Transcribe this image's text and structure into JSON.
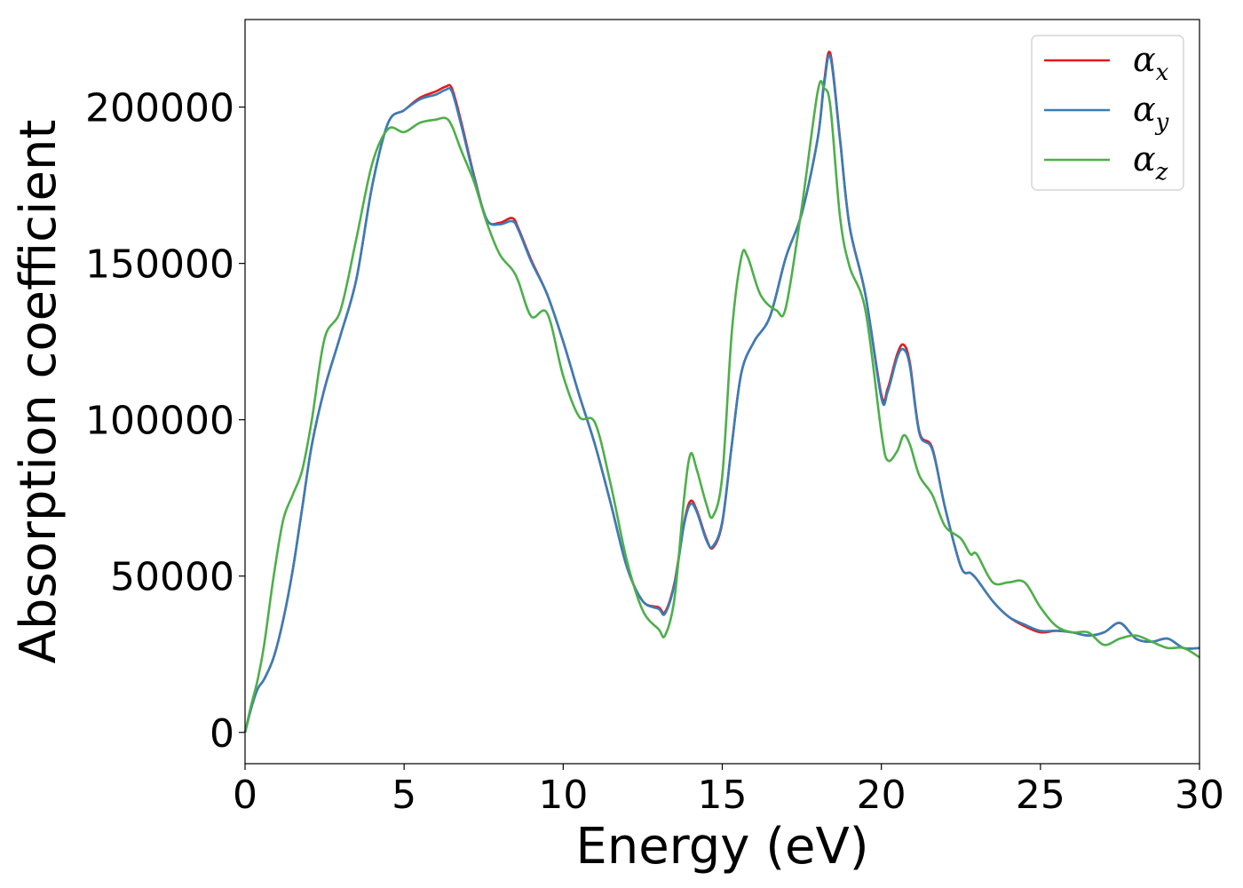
{
  "chart_data": {
    "type": "line",
    "xlabel": "Energy (eV)",
    "ylabel": "Absorption coefficient",
    "xlim": [
      0,
      30
    ],
    "ylim": [
      -10000,
      228000
    ],
    "xticks": [
      0,
      5,
      10,
      15,
      20,
      25,
      30
    ],
    "yticks": [
      0,
      50000,
      100000,
      150000,
      200000
    ],
    "grid": false,
    "legend_position": "top-right",
    "series": [
      {
        "name": "α_x",
        "legend_main": "α",
        "legend_sub": "x",
        "color": "#e41a1c",
        "x": [
          0,
          0.2,
          0.4,
          0.6,
          0.9,
          1.2,
          1.5,
          1.8,
          2.1,
          2.5,
          3.0,
          3.5,
          4.0,
          4.5,
          5.0,
          5.5,
          6.0,
          6.3,
          6.5,
          6.8,
          7.2,
          7.6,
          8.0,
          8.4,
          8.6,
          9.0,
          9.5,
          10.0,
          10.5,
          11.0,
          11.5,
          12.0,
          12.5,
          13.0,
          13.2,
          13.5,
          13.8,
          14.0,
          14.2,
          14.5,
          14.7,
          15.0,
          15.3,
          15.6,
          16.0,
          16.5,
          17.0,
          17.5,
          18.0,
          18.2,
          18.4,
          18.7,
          19.0,
          19.5,
          20.0,
          20.2,
          20.5,
          20.7,
          20.9,
          21.2,
          21.6,
          22.0,
          22.5,
          22.8,
          23.0,
          23.5,
          24.0,
          24.5,
          25.0,
          25.5,
          26.0,
          26.5,
          27.0,
          27.5,
          28.0,
          28.5,
          29.0,
          29.5,
          30.0
        ],
        "y": [
          0,
          8000,
          14000,
          17000,
          24000,
          36000,
          52000,
          72000,
          92000,
          110000,
          127000,
          145000,
          175000,
          195000,
          199000,
          203000,
          205000,
          206500,
          206000,
          195000,
          178000,
          164000,
          163000,
          164500,
          161000,
          151000,
          140000,
          125000,
          108000,
          92000,
          73000,
          53000,
          42000,
          40000,
          38500,
          48000,
          67000,
          74000,
          71000,
          62000,
          59000,
          67000,
          92000,
          115000,
          125000,
          133000,
          152000,
          166000,
          190000,
          208000,
          217000,
          190000,
          162000,
          140000,
          108000,
          110000,
          121000,
          124000,
          118000,
          96000,
          91000,
          72000,
          53000,
          51000,
          49000,
          42000,
          37000,
          34000,
          32000,
          32500,
          32000,
          31000,
          32000,
          35000,
          30000,
          29000,
          30000,
          27000,
          27000
        ]
      },
      {
        "name": "α_y",
        "legend_main": "α",
        "legend_sub": "y",
        "color": "#377eb8",
        "x": [
          0,
          0.2,
          0.4,
          0.6,
          0.9,
          1.2,
          1.5,
          1.8,
          2.1,
          2.5,
          3.0,
          3.5,
          4.0,
          4.5,
          5.0,
          5.5,
          6.0,
          6.3,
          6.5,
          6.8,
          7.2,
          7.6,
          8.0,
          8.4,
          8.6,
          9.0,
          9.5,
          10.0,
          10.5,
          11.0,
          11.5,
          12.0,
          12.5,
          13.0,
          13.2,
          13.5,
          13.8,
          14.0,
          14.2,
          14.5,
          14.7,
          15.0,
          15.3,
          15.6,
          16.0,
          16.5,
          17.0,
          17.5,
          18.0,
          18.2,
          18.4,
          18.7,
          19.0,
          19.5,
          20.0,
          20.2,
          20.5,
          20.7,
          20.9,
          21.2,
          21.6,
          22.0,
          22.5,
          22.8,
          23.0,
          23.5,
          24.0,
          24.5,
          25.0,
          25.5,
          26.0,
          26.5,
          27.0,
          27.5,
          28.0,
          28.5,
          29.0,
          29.5,
          30.0
        ],
        "y": [
          0,
          8000,
          14000,
          17000,
          24000,
          36000,
          52000,
          72000,
          92000,
          110000,
          127000,
          145000,
          175000,
          195000,
          199000,
          202500,
          204000,
          205500,
          205000,
          194000,
          177500,
          164000,
          162500,
          163500,
          160500,
          150500,
          140000,
          125000,
          108000,
          92000,
          73000,
          53000,
          42000,
          39500,
          38000,
          47500,
          66500,
          73000,
          70500,
          61500,
          59500,
          67500,
          92000,
          115000,
          125000,
          133000,
          152000,
          166000,
          190000,
          207000,
          216000,
          189500,
          162000,
          140000,
          107000,
          109000,
          120000,
          122500,
          117000,
          95500,
          90500,
          72000,
          53000,
          51000,
          49000,
          42000,
          37000,
          34500,
          32500,
          32500,
          32000,
          31000,
          32000,
          35000,
          30000,
          29000,
          30000,
          27000,
          27000
        ]
      },
      {
        "name": "α_z",
        "legend_main": "α",
        "legend_sub": "z",
        "color": "#4daf4a",
        "x": [
          0,
          0.2,
          0.4,
          0.6,
          0.9,
          1.2,
          1.5,
          1.8,
          2.1,
          2.5,
          3.0,
          3.5,
          4.0,
          4.5,
          5.0,
          5.5,
          6.0,
          6.3,
          6.5,
          6.8,
          7.2,
          7.6,
          8.0,
          8.4,
          8.6,
          9.0,
          9.5,
          10.0,
          10.5,
          11.0,
          11.5,
          12.0,
          12.5,
          13.0,
          13.2,
          13.5,
          13.8,
          14.0,
          14.2,
          14.5,
          14.7,
          15.0,
          15.3,
          15.6,
          15.8,
          16.2,
          16.7,
          17.0,
          17.5,
          18.0,
          18.2,
          18.4,
          18.7,
          19.0,
          19.5,
          20.0,
          20.2,
          20.5,
          20.7,
          20.9,
          21.2,
          21.6,
          22.0,
          22.5,
          22.8,
          23.0,
          23.5,
          24.0,
          24.5,
          25.0,
          25.5,
          26.0,
          26.5,
          27.0,
          27.5,
          28.0,
          28.5,
          29.0,
          29.5,
          30.0
        ],
        "y": [
          0,
          9000,
          17000,
          28000,
          50000,
          68000,
          76000,
          84000,
          100000,
          126000,
          135000,
          158000,
          182000,
          193000,
          192000,
          195000,
          196000,
          196500,
          194000,
          186000,
          176000,
          163000,
          153000,
          148000,
          144000,
          133000,
          134000,
          114000,
          101000,
          99000,
          79000,
          55000,
          39000,
          33000,
          31000,
          43000,
          75000,
          89000,
          84000,
          73000,
          69000,
          82000,
          128000,
          152000,
          152000,
          140000,
          135000,
          136000,
          168000,
          205000,
          206000,
          200000,
          165000,
          149000,
          135000,
          96000,
          87000,
          90000,
          95000,
          92000,
          82000,
          76000,
          66000,
          62000,
          57000,
          57000,
          48000,
          48000,
          48000,
          40000,
          34000,
          32000,
          32000,
          28000,
          30000,
          31000,
          29000,
          27000,
          27000,
          24000
        ]
      }
    ]
  }
}
